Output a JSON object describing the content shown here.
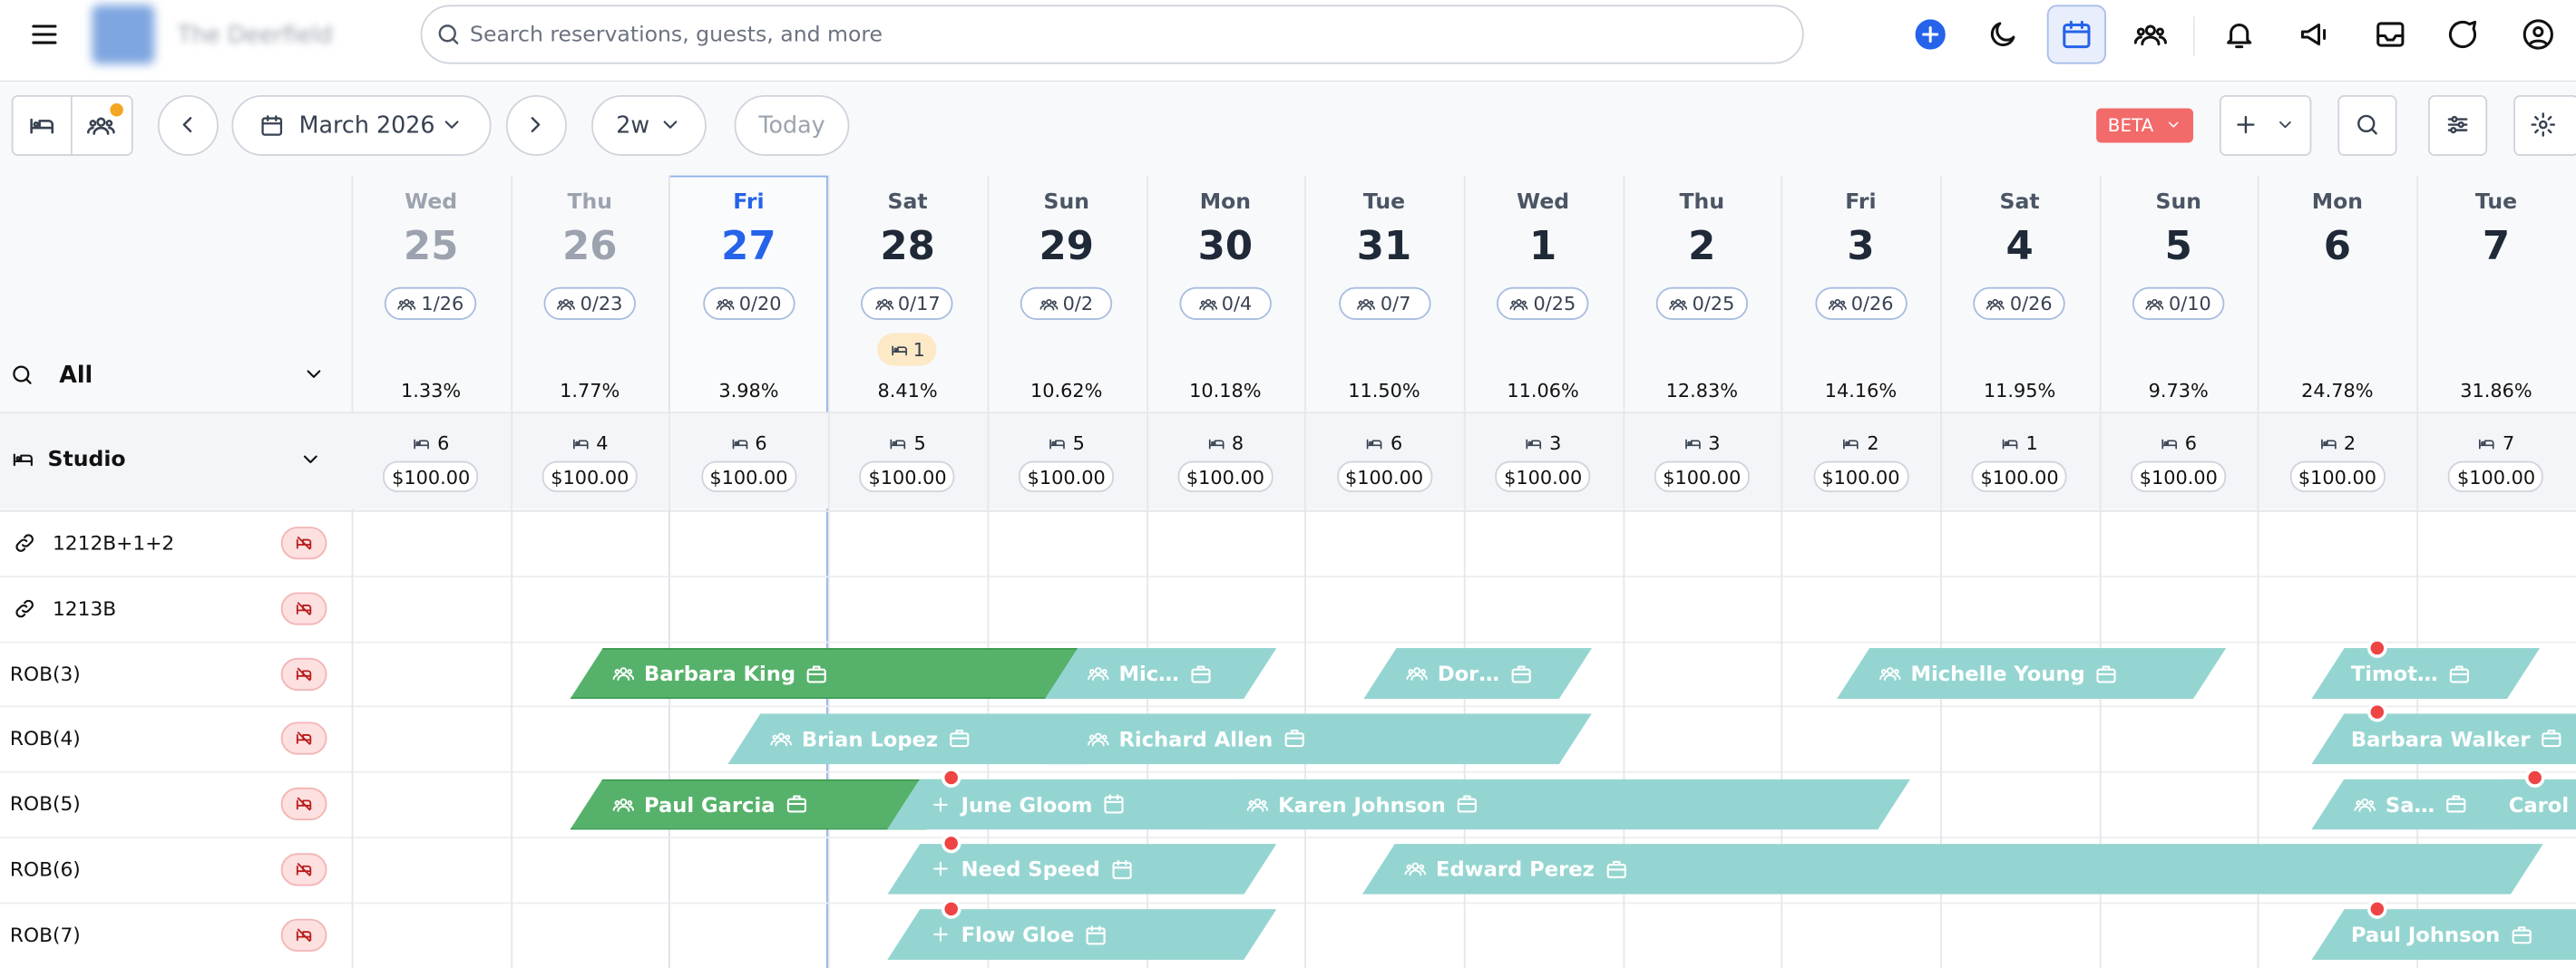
{
  "header": {
    "property_name": "The Deerfield",
    "search_placeholder": "Search reservations, guests, and more"
  },
  "toolbar": {
    "month": "March 2026",
    "range": "2w",
    "today": "Today",
    "beta": "BETA"
  },
  "filter": {
    "label": "All"
  },
  "days": [
    {
      "weekday": "Wed",
      "date": 25,
      "occupancy": "1/26",
      "rate": "1.33%"
    },
    {
      "weekday": "Thu",
      "date": 26,
      "occupancy": "0/23",
      "rate": "1.77%"
    },
    {
      "weekday": "Fri",
      "date": 27,
      "occupancy": "0/20",
      "rate": "3.98%"
    },
    {
      "weekday": "Sat",
      "date": 28,
      "occupancy": "0/17",
      "unassigned": 1,
      "rate": "8.41%"
    },
    {
      "weekday": "Sun",
      "date": 29,
      "occupancy": "0/2",
      "rate": "10.62%"
    },
    {
      "weekday": "Mon",
      "date": 30,
      "occupancy": "0/4",
      "rate": "10.18%"
    },
    {
      "weekday": "Tue",
      "date": 31,
      "occupancy": "0/7",
      "rate": "11.50%"
    },
    {
      "weekday": "Wed",
      "date": 1,
      "occupancy": "0/25",
      "rate": "11.06%"
    },
    {
      "weekday": "Thu",
      "date": 2,
      "occupancy": "0/25",
      "rate": "12.83%"
    },
    {
      "weekday": "Fri",
      "date": 3,
      "occupancy": "0/26",
      "rate": "14.16%"
    },
    {
      "weekday": "Sat",
      "date": 4,
      "occupancy": "0/26",
      "rate": "11.95%"
    },
    {
      "weekday": "Sun",
      "date": 5,
      "occupancy": "0/10",
      "rate": "9.73%"
    },
    {
      "weekday": "Mon",
      "date": 6,
      "rate": "24.78%"
    },
    {
      "weekday": "Tue",
      "date": 7,
      "rate": "31.86%"
    }
  ],
  "room_type": {
    "name": "Studio",
    "available": [
      6,
      4,
      6,
      5,
      5,
      8,
      6,
      3,
      3,
      2,
      1,
      6,
      2,
      7
    ],
    "prices": [
      "$100.00",
      "$100.00",
      "$100.00",
      "$100.00",
      "$100.00",
      "$100.00",
      "$100.00",
      "$100.00",
      "$100.00",
      "$100.00",
      "$100.00",
      "$100.00",
      "$100.00",
      "$100.00"
    ]
  },
  "rooms": [
    {
      "name": "1212B+1+2",
      "reservations": []
    },
    {
      "name": "1213B",
      "reservations": []
    },
    {
      "name": "ROB(3)",
      "reservations": [
        {
          "guest": "Barbara King"
        },
        {
          "guest": "Mic…"
        },
        {
          "guest": "Dor…"
        },
        {
          "guest": "Michelle Young"
        },
        {
          "guest": "Timot…"
        }
      ]
    },
    {
      "name": "ROB(4)",
      "reservations": [
        {
          "guest": "Brian Lopez"
        },
        {
          "guest": "Richard Allen"
        },
        {
          "guest": "Barbara Walker"
        }
      ]
    },
    {
      "name": "ROB(5)",
      "reservations": [
        {
          "guest": "Paul Garcia"
        },
        {
          "guest": "June Gloom"
        },
        {
          "guest": "Karen Johnson"
        },
        {
          "guest": "Sa…"
        },
        {
          "guest": "Carol"
        }
      ]
    },
    {
      "name": "ROB(6)",
      "reservations": [
        {
          "guest": "Need Speed"
        },
        {
          "guest": "Edward Perez"
        }
      ]
    },
    {
      "name": "ROB(7)",
      "reservations": [
        {
          "guest": "Flow Gloe"
        },
        {
          "guest": "Paul Johnson"
        }
      ]
    }
  ]
}
